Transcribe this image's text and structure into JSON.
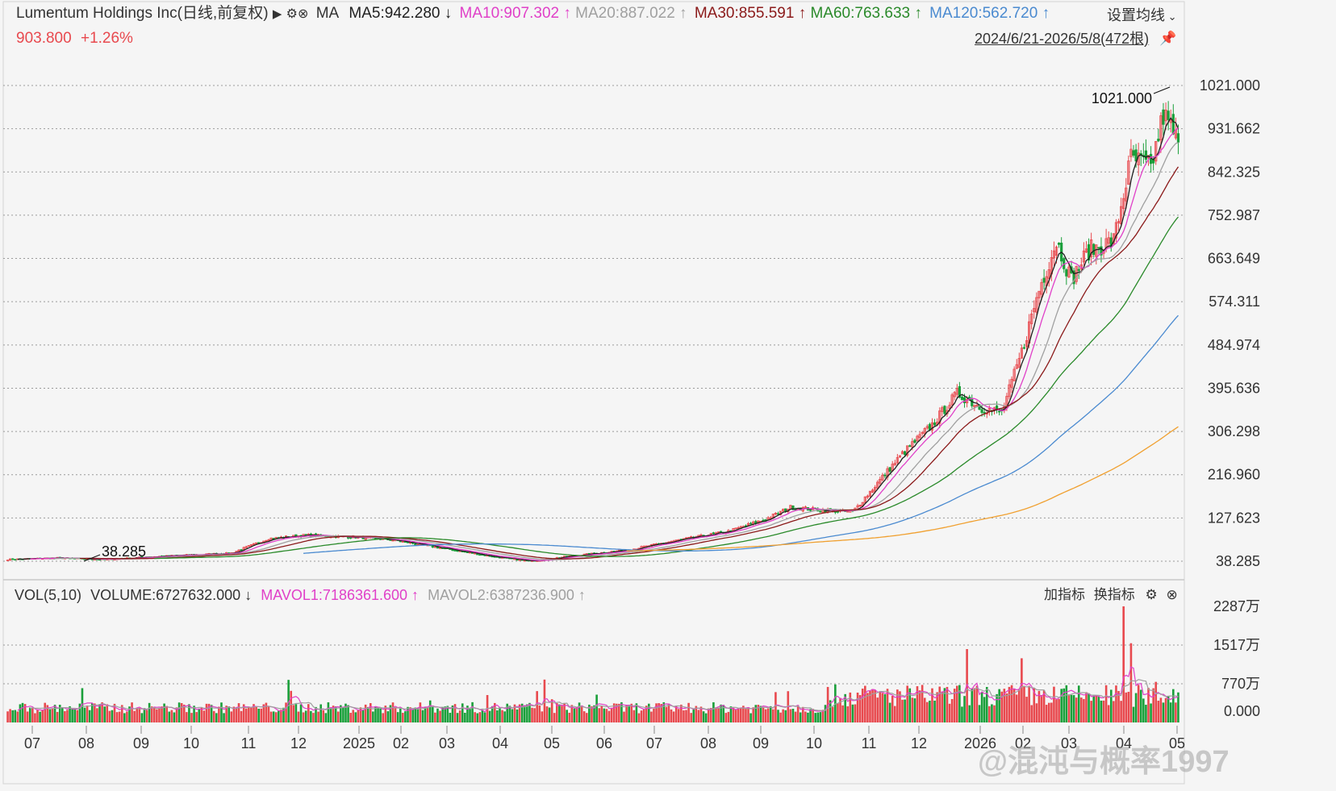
{
  "header": {
    "title": "Lumentum Holdings Inc",
    "title_suffix": "(日线,前复权)",
    "indicator": "MA",
    "ma5": "MA5:942.280",
    "ma10": "MA10:907.302",
    "ma20": "MA20:887.022",
    "ma30": "MA30:855.591",
    "ma60": "MA60:763.633",
    "ma120": "MA120:562.720",
    "price": "903.800",
    "change": "+1.26%",
    "settings_label": "设置均线",
    "date_range": "2024/6/21-2026/5/8(472根)"
  },
  "volume_header": {
    "label": "VOL(5,10)",
    "volume": "VOLUME:6727632.000",
    "mavol1": "MAVOL1:7186361.600",
    "mavol2": "MAVOL2:6387236.900",
    "add_indicator": "加指标",
    "switch_indicator": "换指标"
  },
  "watermark": "@混沌与概率1997",
  "colors": {
    "bg": "#f5f5f5",
    "up": "#e8494e",
    "down": "#1a9f3a",
    "ma5": "#1f1f1f",
    "ma10": "#e040c8",
    "ma20": "#a0a0a0",
    "ma30": "#8b1a1a",
    "ma60": "#2a8a2a",
    "ma120": "#4a8ad0",
    "ma250": "#f0a030",
    "grid": "#9a9a9a"
  },
  "chart_data": {
    "type": "candlestick",
    "title": "Lumentum Holdings Inc",
    "price_axis_ticks": [
      "1021.000",
      "931.662",
      "842.325",
      "752.987",
      "663.649",
      "574.311",
      "484.974",
      "395.636",
      "306.298",
      "216.960",
      "127.623",
      "38.285"
    ],
    "price_range": [
      38.285,
      1021.0
    ],
    "max_annotation": "1021.000",
    "min_annotation": "38.285",
    "volume_axis_ticks": [
      "2287万",
      "1517万",
      "770万",
      "0.000"
    ],
    "volume_range": [
      0,
      2287
    ],
    "x_ticks": [
      "07",
      "08",
      "09",
      "10",
      "11",
      "12",
      "2025",
      "02",
      "03",
      "04",
      "05",
      "06",
      "07",
      "08",
      "09",
      "10",
      "11",
      "12",
      "2026",
      "02",
      "03",
      "04",
      "05"
    ],
    "close_anchors": [
      {
        "i": 0,
        "v": 42
      },
      {
        "i": 20,
        "v": 45
      },
      {
        "i": 40,
        "v": 42
      },
      {
        "i": 60,
        "v": 48
      },
      {
        "i": 90,
        "v": 55
      },
      {
        "i": 105,
        "v": 85
      },
      {
        "i": 120,
        "v": 92
      },
      {
        "i": 140,
        "v": 88
      },
      {
        "i": 155,
        "v": 82
      },
      {
        "i": 175,
        "v": 65
      },
      {
        "i": 195,
        "v": 48
      },
      {
        "i": 210,
        "v": 38
      },
      {
        "i": 225,
        "v": 48
      },
      {
        "i": 250,
        "v": 62
      },
      {
        "i": 270,
        "v": 82
      },
      {
        "i": 290,
        "v": 100
      },
      {
        "i": 305,
        "v": 125
      },
      {
        "i": 315,
        "v": 150
      },
      {
        "i": 325,
        "v": 145
      },
      {
        "i": 340,
        "v": 140
      },
      {
        "i": 350,
        "v": 200
      },
      {
        "i": 360,
        "v": 260
      },
      {
        "i": 372,
        "v": 320
      },
      {
        "i": 382,
        "v": 385
      },
      {
        "i": 392,
        "v": 355
      },
      {
        "i": 400,
        "v": 345
      },
      {
        "i": 408,
        "v": 470
      },
      {
        "i": 415,
        "v": 600
      },
      {
        "i": 422,
        "v": 700
      },
      {
        "i": 428,
        "v": 620
      },
      {
        "i": 435,
        "v": 680
      },
      {
        "i": 445,
        "v": 700
      },
      {
        "i": 452,
        "v": 870
      },
      {
        "i": 460,
        "v": 850
      },
      {
        "i": 465,
        "v": 960
      },
      {
        "i": 471,
        "v": 903.8
      }
    ],
    "candle_count": 472,
    "moving_averages": [
      {
        "name": "MA5",
        "value": 942.28
      },
      {
        "name": "MA10",
        "value": 907.302
      },
      {
        "name": "MA20",
        "value": 887.022
      },
      {
        "name": "MA30",
        "value": 855.591
      },
      {
        "name": "MA60",
        "value": 763.633
      },
      {
        "name": "MA120",
        "value": 562.72
      }
    ],
    "volume_series": [
      {
        "name": "MAVOL1",
        "value": 7186361.6
      },
      {
        "name": "MAVOL2",
        "value": 6387236.9
      }
    ],
    "last_volume": 6727632
  }
}
